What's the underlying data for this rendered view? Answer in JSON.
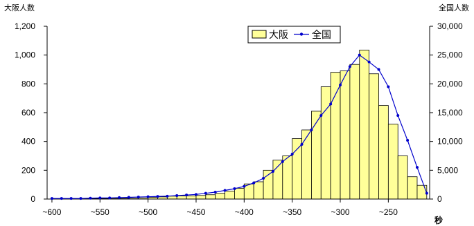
{
  "chart_data": {
    "type": "bar",
    "title": "",
    "left_axis_label": "大阪人数",
    "right_axis_label": "全国人数",
    "x_unit_label": "秒",
    "x_tick_labels": [
      "~600",
      "~550",
      "~500",
      "~450",
      "~400",
      "~350",
      "~300",
      "~250"
    ],
    "x_tick_values": [
      -600,
      -550,
      -500,
      -450,
      -400,
      -350,
      -300,
      -250
    ],
    "xlim": [
      -605,
      -207
    ],
    "left_ylim": [
      0,
      1200
    ],
    "left_ticks": [
      "0",
      "200",
      "400",
      "600",
      "800",
      "1,000",
      "1,200"
    ],
    "right_ylim": [
      0,
      30000
    ],
    "right_ticks": [
      "0",
      "5,000",
      "10,000",
      "15,000",
      "20,000",
      "25,000",
      "30,000"
    ],
    "grid": false,
    "legend_position": "top-center",
    "bin_width": 10,
    "series": [
      {
        "name": "大阪",
        "kind": "bar",
        "axis": "left",
        "color": "#ffff99",
        "edge_color": "#000000",
        "x": [
          -595,
          -585,
          -575,
          -565,
          -555,
          -545,
          -535,
          -525,
          -515,
          -505,
          -495,
          -485,
          -475,
          -465,
          -455,
          -445,
          -435,
          -425,
          -415,
          -405,
          -395,
          -385,
          -375,
          -365,
          -355,
          -345,
          -335,
          -325,
          -315,
          -305,
          -295,
          -285,
          -275,
          -265,
          -255,
          -245,
          -235,
          -225,
          -215
        ],
        "values": [
          2,
          2,
          2,
          3,
          3,
          4,
          5,
          5,
          6,
          8,
          12,
          15,
          20,
          22,
          22,
          25,
          30,
          40,
          55,
          75,
          105,
          120,
          200,
          270,
          300,
          420,
          480,
          610,
          780,
          880,
          890,
          935,
          1035,
          870,
          650,
          520,
          300,
          155,
          95
        ]
      },
      {
        "name": "全国",
        "kind": "line",
        "axis": "right",
        "color": "#0000cc",
        "marker": "circle",
        "x": [
          -600,
          -590,
          -580,
          -570,
          -560,
          -550,
          -540,
          -530,
          -520,
          -510,
          -500,
          -490,
          -480,
          -470,
          -460,
          -450,
          -440,
          -430,
          -420,
          -410,
          -400,
          -390,
          -380,
          -370,
          -360,
          -350,
          -340,
          -330,
          -320,
          -310,
          -300,
          -290,
          -280,
          -270,
          -260,
          -250,
          -240,
          -230,
          -220,
          -210
        ],
        "values": [
          100,
          100,
          100,
          100,
          150,
          200,
          200,
          250,
          300,
          350,
          400,
          450,
          500,
          600,
          700,
          800,
          1000,
          1200,
          1500,
          1800,
          2200,
          2800,
          3600,
          4800,
          6500,
          7800,
          9500,
          12000,
          14500,
          16500,
          19800,
          23000,
          25000,
          23800,
          22500,
          19500,
          14500,
          10200,
          5500,
          1000
        ]
      }
    ]
  }
}
